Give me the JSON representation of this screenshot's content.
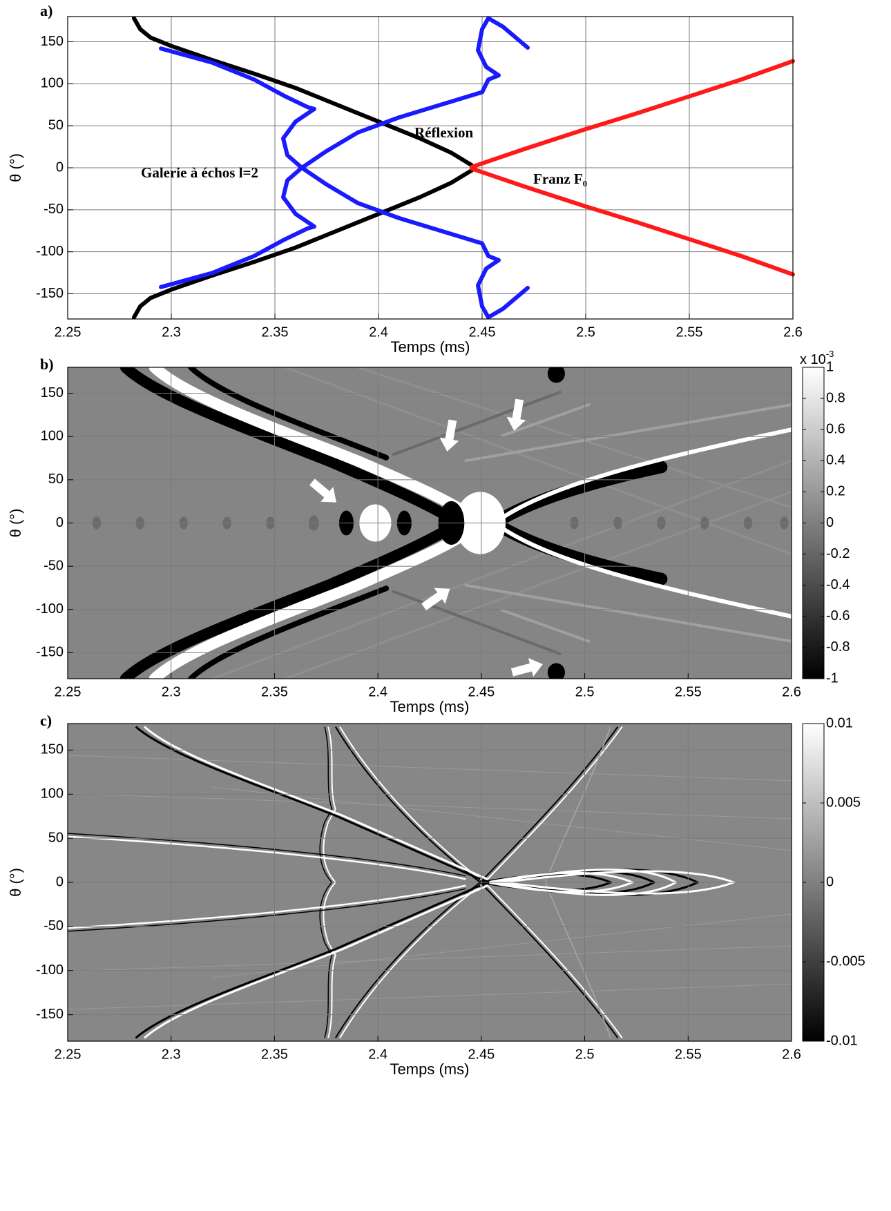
{
  "chart_data": [
    {
      "type": "line",
      "label": "a)",
      "xlabel": "Temps (ms)",
      "ylabel": "θ (°)",
      "xlim": [
        2.25,
        2.6
      ],
      "ylim": [
        -180,
        180
      ],
      "xticks": [
        2.25,
        2.3,
        2.35,
        2.4,
        2.45,
        2.5,
        2.55,
        2.6
      ],
      "yticks": [
        -150,
        -100,
        -50,
        0,
        50,
        100,
        150
      ],
      "grid": true,
      "annotations": [
        {
          "text": "Réflexion",
          "color": "#000000"
        },
        {
          "text": "Galerie à échos l=2",
          "color": "#1a1aff"
        },
        {
          "text": "Franz F₀",
          "color": "#ff1a1a"
        }
      ],
      "series": [
        {
          "color": "#000000",
          "x": [
            2.282,
            2.285,
            2.29,
            2.3,
            2.32,
            2.34,
            2.36,
            2.38,
            2.4,
            2.42,
            2.435,
            2.445,
            null,
            2.445,
            2.435,
            2.42,
            2.4,
            2.38,
            2.36,
            2.34,
            2.32,
            2.3,
            2.29,
            2.285,
            2.282
          ],
          "values": [
            178,
            165,
            155,
            145,
            128,
            112,
            95,
            75,
            55,
            35,
            18,
            3,
            null,
            -3,
            -18,
            -35,
            -55,
            -75,
            -95,
            -112,
            -128,
            -145,
            -155,
            -165,
            -178
          ]
        },
        {
          "color": "#1a1aff",
          "x": [
            2.295,
            2.32,
            2.34,
            2.355,
            2.366,
            2.369,
            2.36,
            2.354,
            2.356,
            2.363,
            2.375,
            2.39,
            2.41,
            2.43,
            2.45,
            2.453,
            2.458,
            2.452,
            2.448,
            2.45,
            2.453,
            2.46,
            2.472,
            null,
            2.295,
            2.32,
            2.34,
            2.355,
            2.366,
            2.369,
            2.36,
            2.354,
            2.356,
            2.363,
            2.375,
            2.39,
            2.41,
            2.43,
            2.45,
            2.453,
            2.458,
            2.452,
            2.448,
            2.45,
            2.453,
            2.46,
            2.472
          ],
          "values": [
            142,
            125,
            105,
            85,
            72,
            70,
            55,
            35,
            15,
            0,
            -20,
            -42,
            -60,
            -75,
            -90,
            -105,
            -110,
            -120,
            -140,
            -165,
            -178,
            -168,
            -143,
            null,
            -142,
            -125,
            -105,
            -85,
            -72,
            -70,
            -55,
            -35,
            -15,
            0,
            20,
            42,
            60,
            75,
            90,
            105,
            110,
            120,
            140,
            165,
            178,
            168,
            143
          ]
        },
        {
          "color": "#ff1a1a",
          "x": [
            2.445,
            2.47,
            2.5,
            2.525,
            2.55,
            2.575,
            2.6,
            null,
            2.445,
            2.47,
            2.5,
            2.525,
            2.55,
            2.575,
            2.6
          ],
          "values": [
            1,
            22,
            46,
            65,
            85,
            105,
            127,
            null,
            -1,
            -22,
            -46,
            -65,
            -85,
            -105,
            -127
          ]
        }
      ]
    },
    {
      "type": "heatmap",
      "label": "b)",
      "xlabel": "Temps (ms)",
      "ylabel": "θ (°)",
      "xlim": [
        2.25,
        2.6
      ],
      "ylim": [
        -180,
        180
      ],
      "xticks": [
        2.25,
        2.3,
        2.35,
        2.4,
        2.45,
        2.5,
        2.55,
        2.6
      ],
      "yticks": [
        -150,
        -100,
        -50,
        0,
        50,
        100,
        150
      ],
      "grid": true,
      "colormap": "gray",
      "clim": [
        -1,
        1
      ],
      "cticks": [
        -1,
        -0.8,
        -0.6,
        -0.4,
        -0.2,
        0,
        0.2,
        0.4,
        0.6,
        0.8,
        1
      ],
      "colorbar_multiplier": "x 10",
      "colorbar_exponent": "-3"
    },
    {
      "type": "heatmap",
      "label": "c)",
      "xlabel": "Temps (ms)",
      "ylabel": "θ (°)",
      "xlim": [
        2.25,
        2.6
      ],
      "ylim": [
        -180,
        180
      ],
      "xticks": [
        2.25,
        2.3,
        2.35,
        2.4,
        2.45,
        2.5,
        2.55,
        2.6
      ],
      "yticks": [
        -150,
        -100,
        -50,
        0,
        50,
        100,
        150
      ],
      "grid": true,
      "colormap": "gray",
      "clim": [
        -0.01,
        0.01
      ],
      "cticks": [
        -0.01,
        -0.005,
        0,
        0.005,
        0.01
      ]
    }
  ]
}
